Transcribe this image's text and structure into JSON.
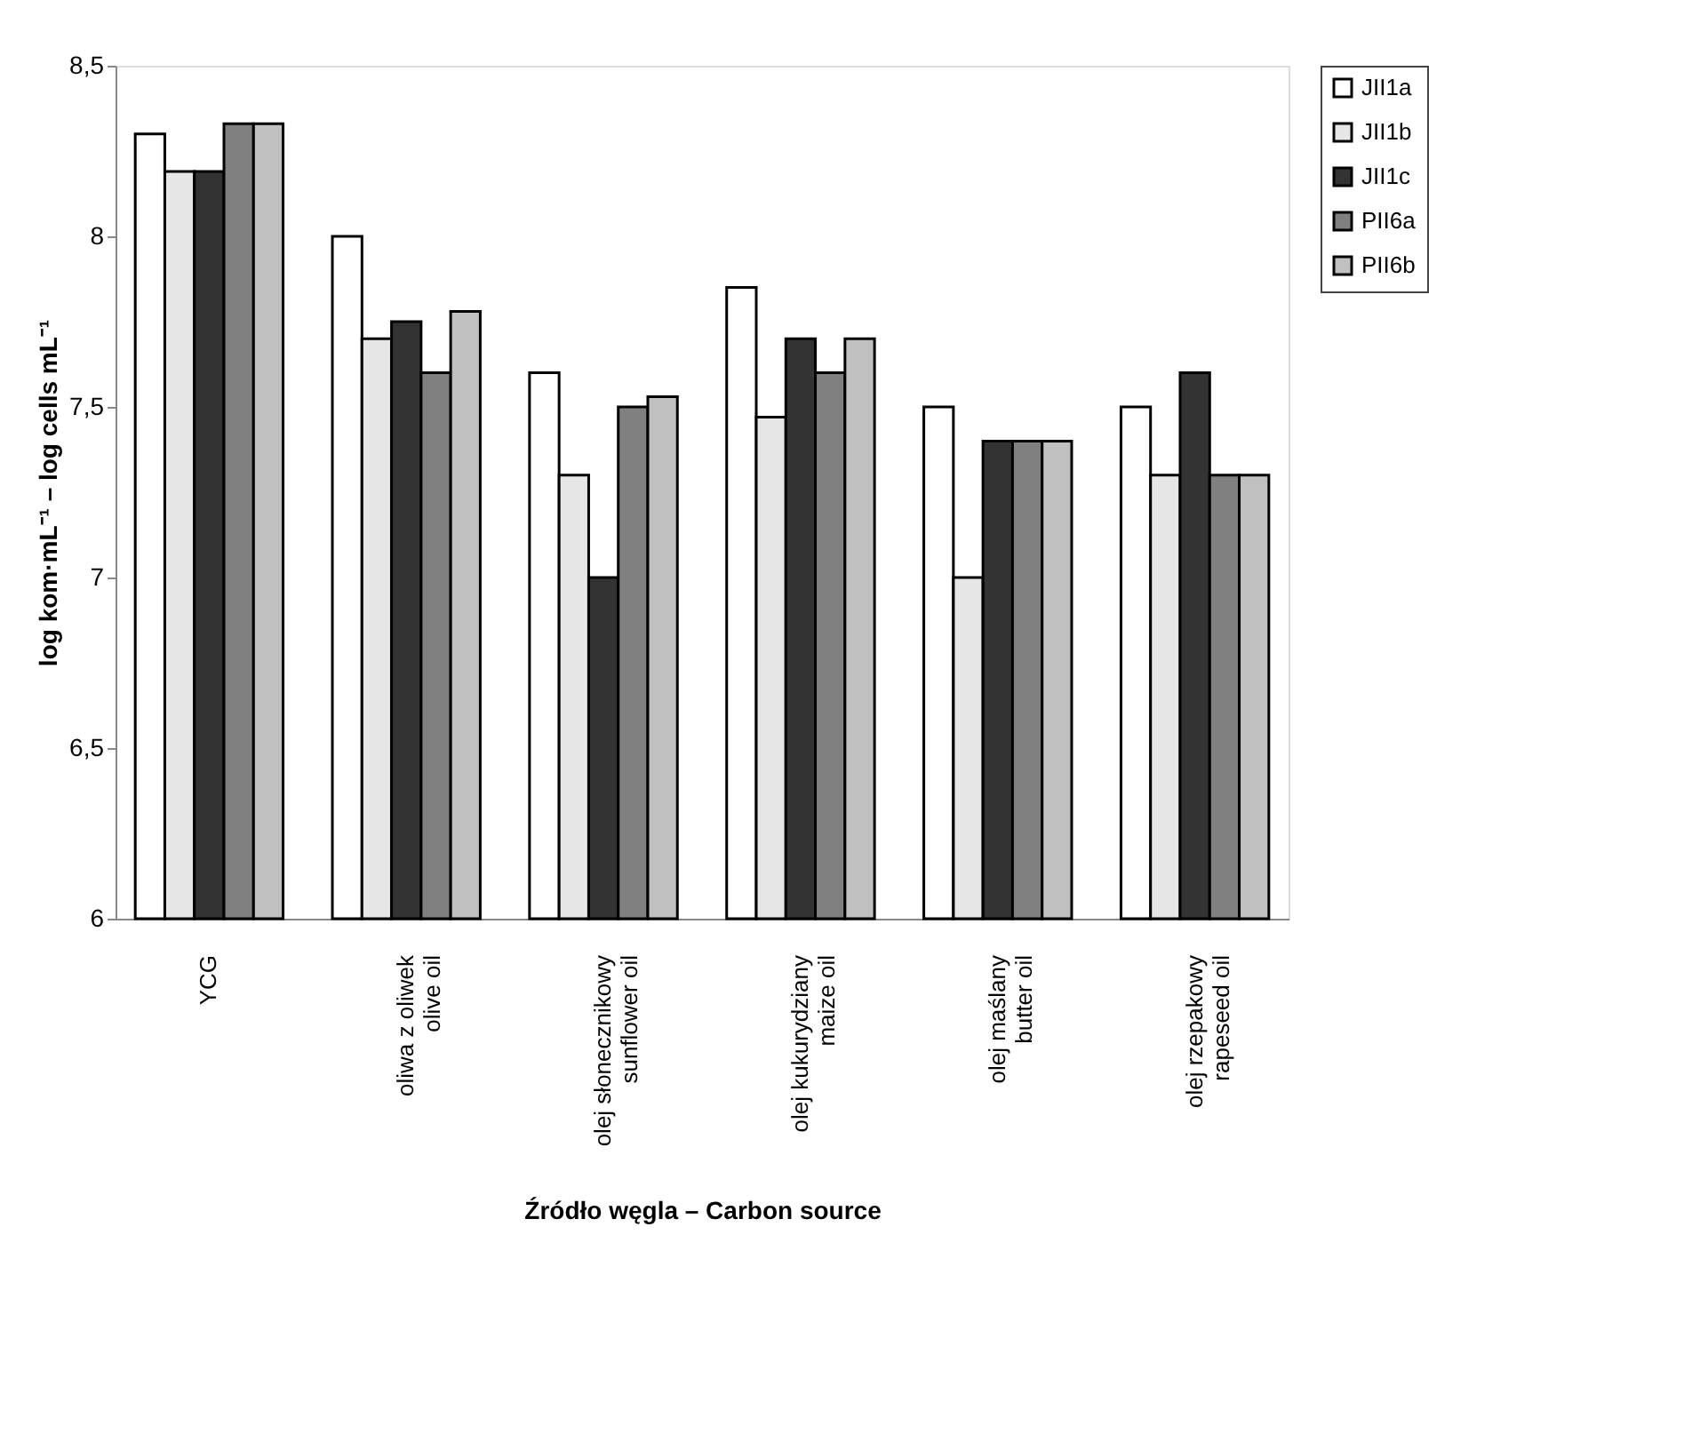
{
  "chart_data": {
    "type": "bar",
    "xlabel": "Źródło węgla – Carbon source",
    "ylabel": "log kom·mL⁻¹ – log cells mL⁻¹",
    "categories": [
      "YCG",
      "oliwa z oliwek\nolive oil",
      "olej słonecznikowy\nsunflower oil",
      "olej kukurydziany\nmaize oil",
      "olej maślany\nbutter oil",
      "olej rzepakowy\nrapeseed oil"
    ],
    "series": [
      {
        "name": "JII1a",
        "color": "#ffffff",
        "values": [
          8.3,
          8.0,
          7.6,
          7.85,
          7.5,
          7.5
        ]
      },
      {
        "name": "JII1b",
        "color": "#e6e6e6",
        "values": [
          8.19,
          7.7,
          7.3,
          7.47,
          7.0,
          7.3
        ]
      },
      {
        "name": "JII1c",
        "color": "#333333",
        "values": [
          8.19,
          7.75,
          7.0,
          7.7,
          7.4,
          7.6
        ]
      },
      {
        "name": "PII6a",
        "color": "#808080",
        "values": [
          8.33,
          7.6,
          7.5,
          7.6,
          7.4,
          7.3
        ]
      },
      {
        "name": "PII6b",
        "color": "#c0c0c0",
        "values": [
          8.33,
          7.78,
          7.53,
          7.7,
          7.4,
          7.3
        ]
      }
    ],
    "ylim": [
      6,
      8.5
    ],
    "yticks": [
      6,
      {
        "value": 6.5,
        "label": "6,5"
      },
      7,
      {
        "value": 7.5,
        "label": "7,5"
      },
      8,
      {
        "value": 8.5,
        "label": "8,5"
      }
    ],
    "grid": false,
    "legend": "top right"
  }
}
